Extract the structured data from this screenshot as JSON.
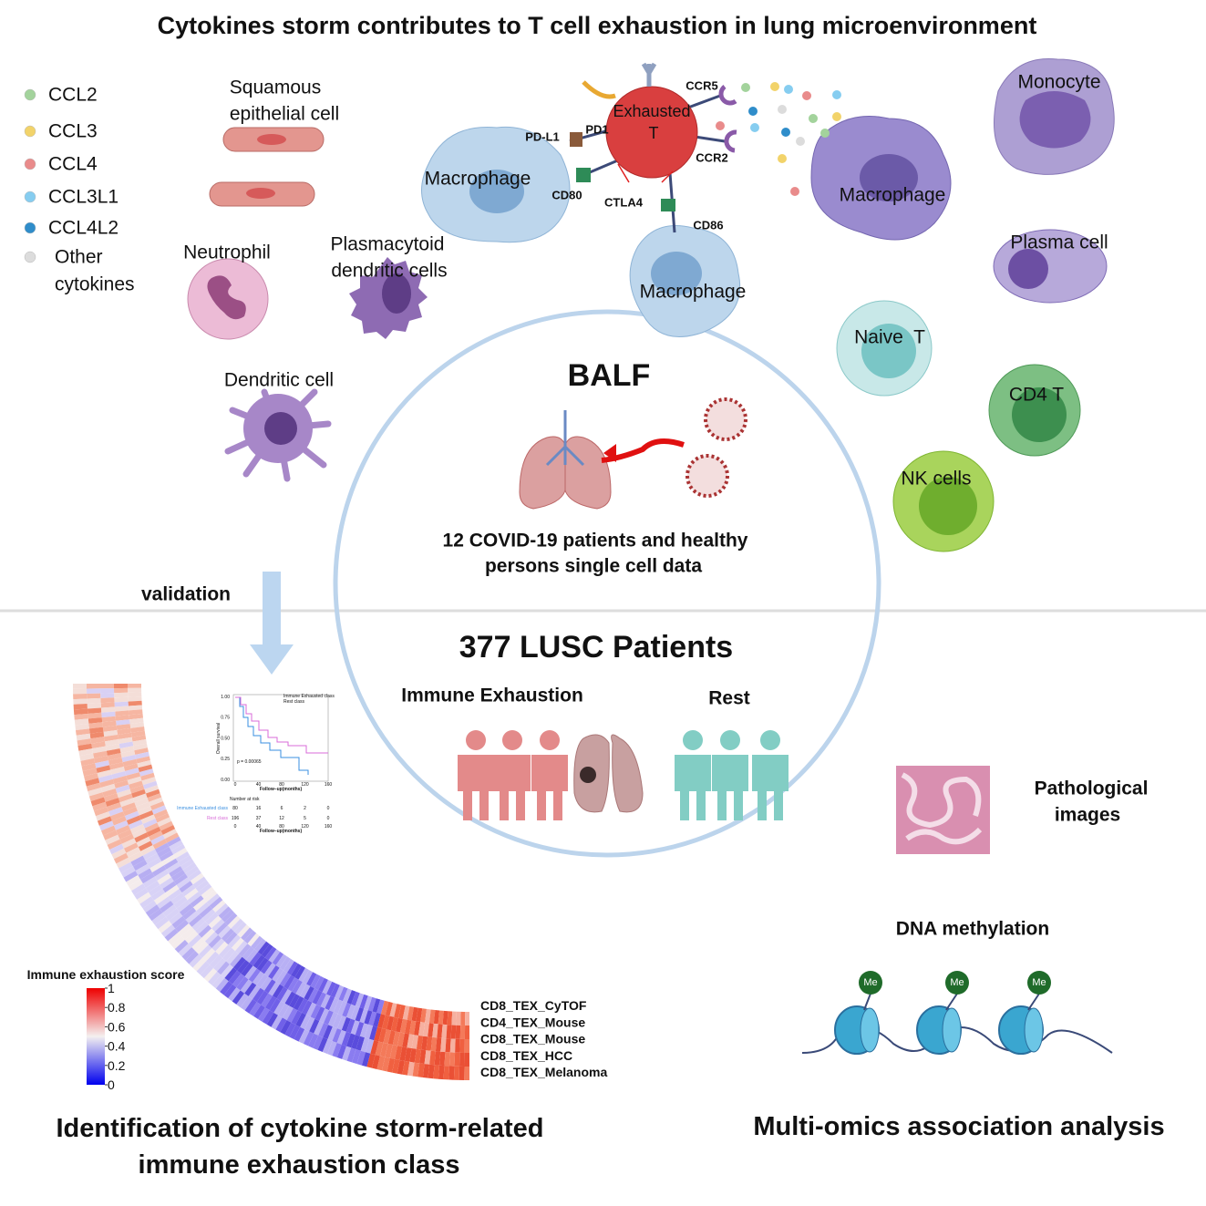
{
  "title": "Cytokines storm contributes to T cell exhaustion in lung microenvironment",
  "legend": [
    {
      "lines": [
        "CCL2"
      ],
      "color": "#a3d39c"
    },
    {
      "lines": [
        "CCL3"
      ],
      "color": "#f2d36a"
    },
    {
      "lines": [
        "CCL4"
      ],
      "color": "#e98b8b"
    },
    {
      "lines": [
        "CCL3L1"
      ],
      "color": "#86cdf0"
    },
    {
      "lines": [
        "CCL4L2"
      ],
      "color": "#2f8dca"
    },
    {
      "lines": [
        "Other",
        "cytokines"
      ],
      "color": "#dcdcdc"
    }
  ],
  "cells": {
    "squamous": [
      "Squamous",
      "epithelial cell"
    ],
    "neutrophil": [
      "Neutrophil"
    ],
    "pdc": [
      "Plasmacytoid",
      "dendritic cells"
    ],
    "dendritic": [
      "Dendritic cell"
    ],
    "macrophage_left": [
      "Macrophage"
    ],
    "exhausted_t": [
      "Exhausted",
      "T"
    ],
    "macrophage_bottom": [
      "Macrophage"
    ],
    "macrophage_right": [
      "Macrophage"
    ],
    "monocyte": [
      "Monocyte"
    ],
    "plasma": [
      "Plasma cell"
    ],
    "naive_t": [
      "Naive  T"
    ],
    "cd4_t": [
      "CD4 T"
    ],
    "nk": [
      "NK cells"
    ]
  },
  "receptors": {
    "ccr5": "CCR5",
    "pdl1": "PD-L1",
    "pd1": "PD1",
    "ccr2": "CCR2",
    "cd80": "CD80",
    "ctla4": "CTLA4",
    "cd86": "CD86"
  },
  "balf": {
    "title": "BALF",
    "caption": [
      "12 COVID-19 patients and healthy",
      "persons single cell data"
    ]
  },
  "validation": "validation",
  "lusc": {
    "title": "377 LUSC Patients",
    "groups": [
      "Immune Exhaustion",
      "Rest"
    ]
  },
  "km": {
    "legend": [
      "Immune Exhausted class",
      "Rest class"
    ],
    "ylabel": "Overall survival",
    "xlabel": "Follow−up(months)",
    "yticks": [
      "1.00",
      "0.75",
      "0.50",
      "0.25",
      "0.00"
    ],
    "xticks": [
      0,
      40,
      80,
      120,
      160
    ],
    "pvalue": "p = 0.00065",
    "risk_title": "Number at risk",
    "risk_rows": [
      [
        80,
        16,
        6,
        2,
        0
      ],
      [
        196,
        37,
        12,
        5,
        0
      ]
    ]
  },
  "heatmap": {
    "legend_title": "Immune exhaustion score",
    "scale_ticks": [
      1,
      0.8,
      0.6,
      0.4,
      0.2,
      0
    ],
    "rows": [
      "CD8_TEX_CyTOF",
      "CD4_TEX_Mouse",
      "CD8_TEX_Mouse",
      "CD8_TEX_HCC",
      "CD8_TEX_Melanoma"
    ]
  },
  "omics": {
    "pathology": [
      "Pathological",
      "images"
    ],
    "methylation": "DNA methylation",
    "mark": "Me"
  },
  "captions": {
    "left": [
      "Identification of cytokine storm-related",
      "immune exhaustion class"
    ],
    "right": "Multi-omics association analysis"
  }
}
